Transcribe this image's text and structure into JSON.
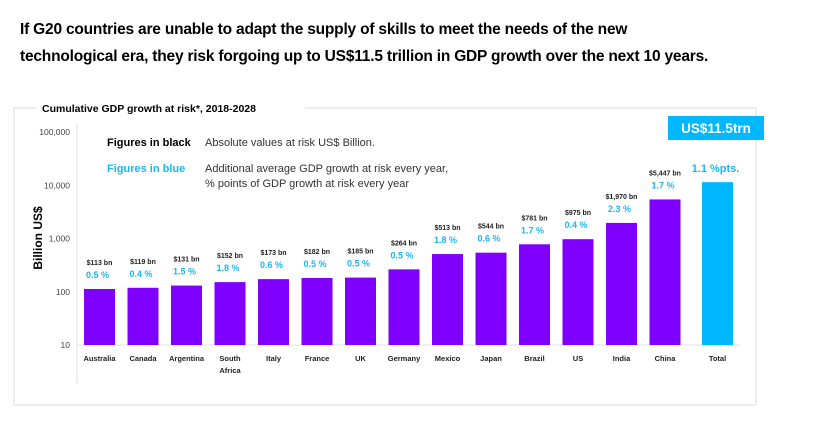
{
  "headline": {
    "line1": "If G20 countries are unable to adapt the supply of skills to meet the needs of the new",
    "line2": "technological era, they risk forgoing up to US$11.5 trillion in GDP growth over the next 10 years."
  },
  "colors": {
    "country_bar": "#7F00FF",
    "total_bar": "#00B8FF",
    "blue_text": "#19B8F5",
    "frame": "#dcdcdc",
    "badge_bg": "#00B8FF"
  },
  "legend": {
    "black_label": "Figures in black",
    "black_desc": "Absolute values at risk US$ Billion.",
    "blue_label": "Figures in blue",
    "blue_desc_line1": "Additional average GDP growth at risk every year,",
    "blue_desc_line2": "% points of GDP growth at risk every year"
  },
  "badge": {
    "text": "US$11.5trn"
  },
  "chart_data": {
    "type": "bar",
    "title": "Cumulative GDP growth at risk*, 2018-2028",
    "xlabel": "",
    "ylabel": "Billion US$",
    "yscale": "log",
    "ylim": [
      10,
      100000
    ],
    "yticks": [
      10,
      100,
      1000,
      10000,
      100000
    ],
    "ytick_labels": [
      "10",
      "100",
      "1,000",
      "10,000",
      "100,000"
    ],
    "grid": false,
    "categories": [
      "Australia",
      "Canada",
      "Argentina",
      "South Africa",
      "Italy",
      "France",
      "UK",
      "Germany",
      "Mexico",
      "Japan",
      "Brazil",
      "US",
      "India",
      "China",
      "Total"
    ],
    "category_lines": [
      [
        "Australia"
      ],
      [
        "Canada"
      ],
      [
        "Argentina"
      ],
      [
        "South",
        "Africa"
      ],
      [
        "Italy"
      ],
      [
        "France"
      ],
      [
        "UK"
      ],
      [
        "Germany"
      ],
      [
        "Mexico"
      ],
      [
        "Japan"
      ],
      [
        "Brazil"
      ],
      [
        "US"
      ],
      [
        "India"
      ],
      [
        "China"
      ],
      [
        "Total"
      ]
    ],
    "values": [
      113,
      119,
      131,
      152,
      173,
      182,
      185,
      264,
      513,
      544,
      781,
      975,
      1970,
      5447,
      11500
    ],
    "value_labels": [
      "$113 bn",
      "$119 bn",
      "$131 bn",
      "$152 bn",
      "$173 bn",
      "$182 bn",
      "$185 bn",
      "$264 bn",
      "$513 bn",
      "$544 bn",
      "$781 bn",
      "$975 bn",
      "$1,970 bn",
      "$5,447 bn",
      ""
    ],
    "pct_labels": [
      "0.5 %",
      "0.4 %",
      "1.5 %",
      "1.8 %",
      "0.6 %",
      "0.5 %",
      "0.5 %",
      "0.5 %",
      "1.8 %",
      "0.6 %",
      "1.7 %",
      "0.4 %",
      "2.3 %",
      "1.7 %",
      "1.1 %pts."
    ],
    "pct_growth_points": [
      0.5,
      0.4,
      1.5,
      1.8,
      0.6,
      0.5,
      0.5,
      0.5,
      1.8,
      0.6,
      1.7,
      0.4,
      2.3,
      1.7,
      1.1
    ],
    "highlight": "Total"
  }
}
